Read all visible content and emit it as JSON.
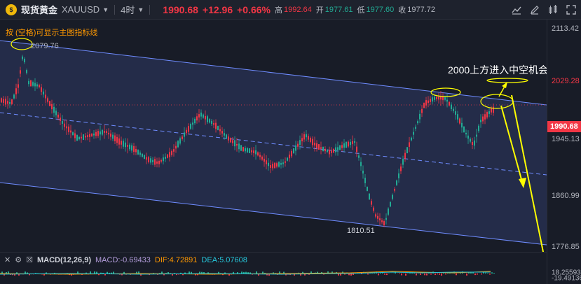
{
  "header": {
    "symbol_icon": "gold-coin-icon",
    "symbol_name": "现货黄金",
    "symbol_code": "XAUUSD",
    "timeframe": "4时",
    "last_price": "1990.68",
    "change": "+12.96",
    "change_pct": "+0.66%",
    "ohlc": [
      {
        "label": "高",
        "value": "1992.64"
      },
      {
        "label": "开",
        "value": "1977.61"
      },
      {
        "label": "低",
        "value": "1977.60"
      },
      {
        "label": "收",
        "value": "1977.72"
      }
    ],
    "tools": [
      "chart-type-icon",
      "draw-icon",
      "indicator-icon",
      "fullscreen-icon"
    ]
  },
  "hint_text": "按 (空格)可显示主图指标线",
  "annotations": {
    "high_label": "2079.76",
    "low_label": "1810.51",
    "callout": "2000上方进入中空机会"
  },
  "price_axis": {
    "ticks": [
      "2113.42",
      "2029.28",
      "1945.13",
      "1860.99",
      "1776.85",
      "18.25593"
    ],
    "last_price_tag": "1990.68",
    "bottom_tag": "-19.49136"
  },
  "macd": {
    "controls": [
      "collapse-icon",
      "settings-icon",
      "close-icon"
    ],
    "name": "MACD(12,26,9)",
    "macd_label": "MACD:-0.69433",
    "dif_label": "DIF:4.72891",
    "dea_label": "DEA:5.07608"
  },
  "colors": {
    "up": "#22ab94",
    "down": "#f23645",
    "channel": "#5b7cfa",
    "annotation": "#ffff00"
  }
}
